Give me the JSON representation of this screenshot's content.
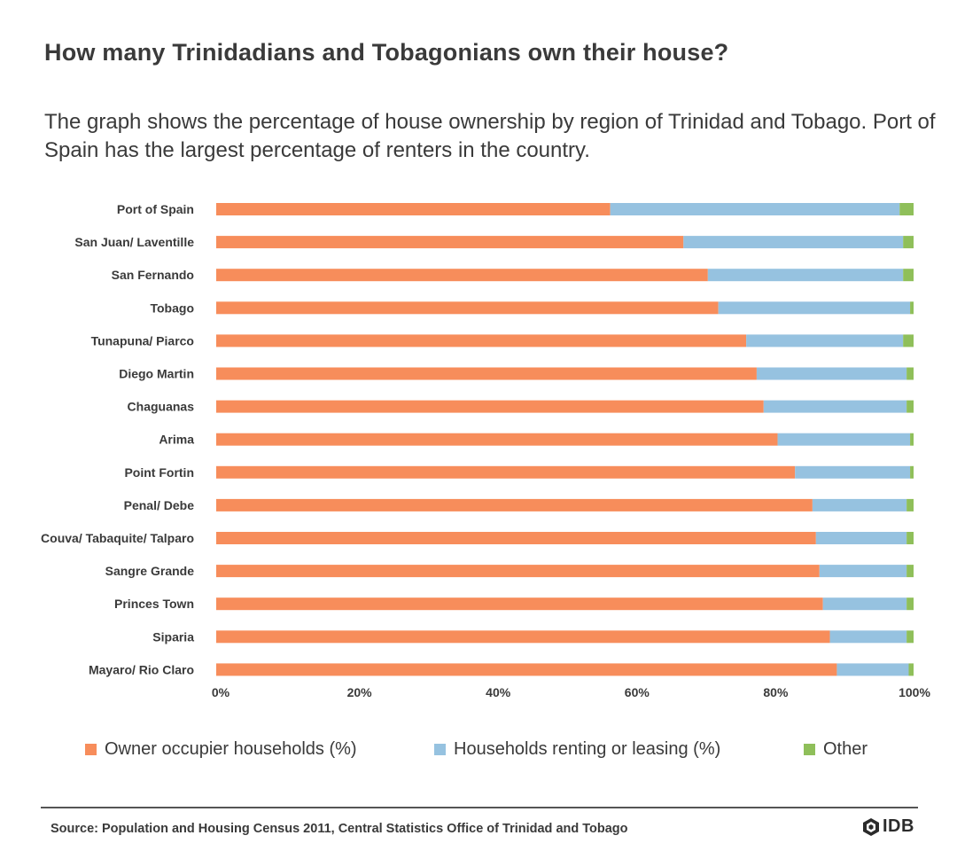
{
  "title": "How many Trinidadians and Tobagonians own their house?",
  "subtitle": "The graph shows the percentage of house ownership by region of Trinidad and Tobago. Port of Spain has the largest percentage of renters in the country.",
  "source": "Source:  Population and Housing Census 2011, Central Statistics Office of Trinidad and Tobago",
  "logo": {
    "text": "IDB",
    "icon": "idb-logo-icon"
  },
  "colors": {
    "owner": "#F78D5B",
    "renting": "#96C2E0",
    "other": "#8FBF5A",
    "text": "#3a3a3a"
  },
  "legend": [
    {
      "label": "Owner occupier households (%)",
      "color": "#F78D5B"
    },
    {
      "label": "Households renting or leasing (%)",
      "color": "#96C2E0"
    },
    {
      "label": "Other",
      "color": "#8FBF5A"
    }
  ],
  "chart_data": {
    "type": "bar",
    "orientation": "horizontal",
    "stacked": true,
    "categories": [
      "Port of Spain",
      "San Juan/ Laventille",
      "San Fernando",
      "Tobago",
      "Tunapuna/ Piarco",
      "Diego Martin",
      "Chaguanas",
      "Arima",
      "Point Fortin",
      "Penal/ Debe",
      "Couva/ Tabaquite/ Talparo",
      "Sangre Grande",
      "Princes Town",
      "Siparia",
      "Mayaro/ Rio Claro"
    ],
    "series": [
      {
        "name": "Owner occupier households (%)",
        "values": [
          56.5,
          67,
          70.5,
          72,
          76,
          77.5,
          78.5,
          80.5,
          83,
          85.5,
          86,
          86.5,
          87,
          88,
          89
        ]
      },
      {
        "name": "Households renting or leasing (%)",
        "values": [
          41.5,
          31.5,
          28,
          27.5,
          22.5,
          21.5,
          20.5,
          19,
          16.5,
          13.5,
          13,
          12.5,
          12,
          11,
          10.3
        ]
      },
      {
        "name": "Other",
        "values": [
          2,
          1.5,
          1.5,
          0.5,
          1.5,
          1,
          1,
          0.5,
          0.5,
          1,
          1,
          1,
          1,
          1,
          0.7
        ]
      }
    ],
    "xlim": [
      0,
      100
    ],
    "xticks": [
      "0%",
      "20%",
      "40%",
      "60%",
      "80%",
      "100%"
    ],
    "grid": false,
    "legend_position": "bottom"
  }
}
